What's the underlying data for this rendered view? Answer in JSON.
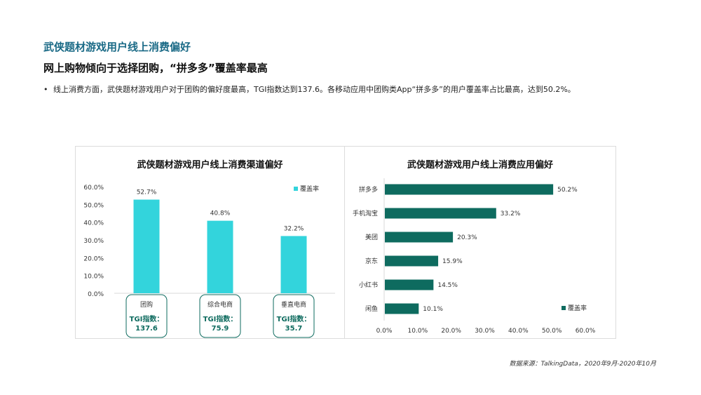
{
  "header": {
    "section_title": "武侠题材游戏用户线上消费偏好",
    "headline": "网上购物倾向于选择团购，“拼多多”覆盖率最高",
    "bullet": "线上消费方面，武侠题材游戏用户对于团购的偏好度最高，TGI指数达到137.6。各移动应用中团购类App“拼多多”的用户覆盖率占比最高，达到50.2%。"
  },
  "colors": {
    "title_teal": "#1a6a86",
    "bar_cyan": "#33d4dc",
    "bar_dark_green": "#0e6b5f",
    "tgi_green": "#0e6b5f"
  },
  "chart_data": [
    {
      "type": "bar",
      "title": "武侠题材游戏用户线上消费渠道偏好",
      "categories": [
        "团购",
        "综合电商",
        "垂直电商"
      ],
      "series": [
        {
          "name": "覆盖率",
          "values": [
            52.7,
            40.8,
            32.2
          ]
        }
      ],
      "value_labels": [
        "52.7%",
        "40.8%",
        "32.2%"
      ],
      "tgi_label": "TGI指数：",
      "tgi_values": [
        "137.6",
        "75.9",
        "35.7"
      ],
      "yticks": [
        "0.0%",
        "10.0%",
        "20.0%",
        "30.0%",
        "40.0%",
        "50.0%",
        "60.0%"
      ],
      "ylim": [
        0,
        60
      ],
      "grid": false,
      "legend": "top-right"
    },
    {
      "type": "bar",
      "orientation": "horizontal",
      "title": "武侠题材游戏用户线上消费应用偏好",
      "categories": [
        "拼多多",
        "手机淘宝",
        "美团",
        "京东",
        "小红书",
        "闲鱼"
      ],
      "series": [
        {
          "name": "覆盖率",
          "values": [
            50.2,
            33.2,
            20.3,
            15.9,
            14.5,
            10.1
          ]
        }
      ],
      "value_labels": [
        "50.2%",
        "33.2%",
        "20.3%",
        "15.9%",
        "14.5%",
        "10.1%"
      ],
      "xticks": [
        "0.0%",
        "10.0%",
        "20.0%",
        "30.0%",
        "40.0%",
        "50.0%",
        "60.0%"
      ],
      "xlim": [
        0,
        60
      ],
      "grid": false,
      "legend": "bottom-right"
    }
  ],
  "source": "数据来源：TalkingData，2020年9月-2020年10月"
}
